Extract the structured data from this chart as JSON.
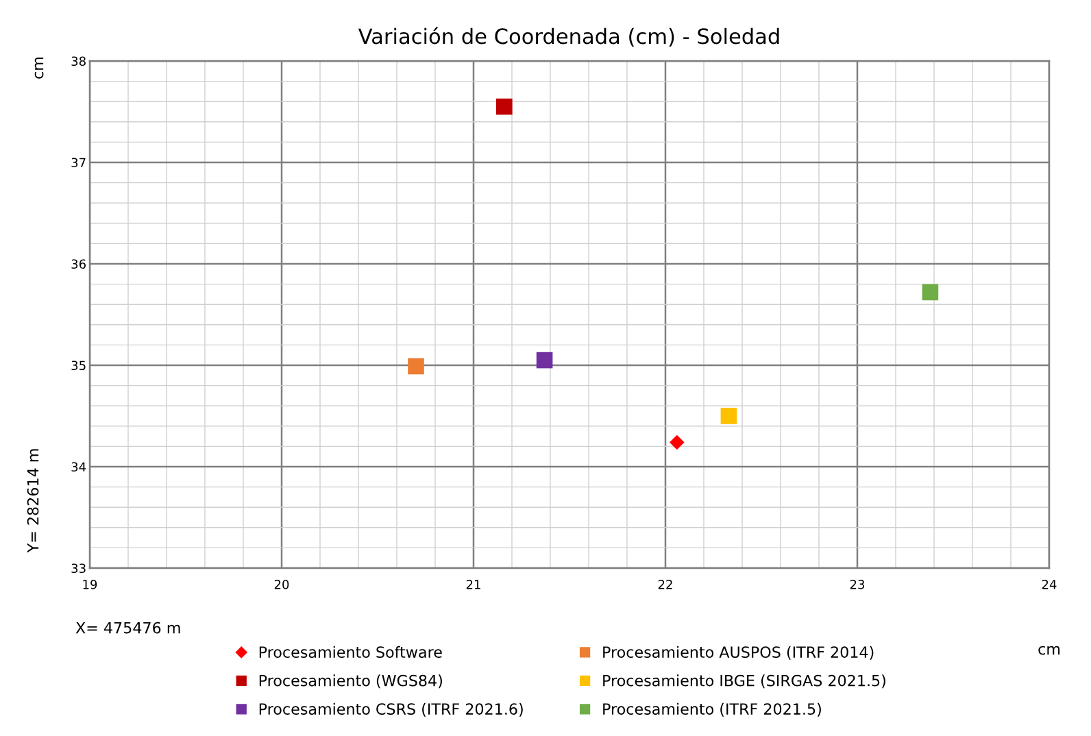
{
  "chart_data": {
    "type": "scatter",
    "title": "Variación de Coordenada (cm) - Soledad",
    "xlabel": "X= 475476 m",
    "ylabel": "Y= 282614 m",
    "annotations": [
      "cm",
      "cm"
    ],
    "series": [
      {
        "name": "Procesamiento Software",
        "color": "#ff0000",
        "marker": "diamond",
        "x": [
          22.06
        ],
        "values": [
          34.24
        ]
      },
      {
        "name": "Procesamiento AUSPOS (ITRF 2014)",
        "color": "#ed7d31",
        "marker": "square",
        "x": [
          20.7
        ],
        "values": [
          34.99
        ]
      },
      {
        "name": "Procesamiento (WGS84)",
        "color": "#c00000",
        "marker": "square",
        "x": [
          21.16
        ],
        "values": [
          37.55
        ]
      },
      {
        "name": "Procesamiento IBGE (SIRGAS 2021.5)",
        "color": "#ffc000",
        "marker": "square",
        "x": [
          22.33
        ],
        "values": [
          34.5
        ]
      },
      {
        "name": "Procesamiento CSRS (ITRF 2021.6)",
        "color": "#7030a0",
        "marker": "square",
        "x": [
          21.37
        ],
        "values": [
          35.05
        ]
      },
      {
        "name": "Procesamiento (ITRF 2021.5)",
        "color": "#70ad47",
        "marker": "square",
        "x": [
          23.38
        ],
        "values": [
          35.72
        ]
      }
    ],
    "xlim": [
      19,
      24
    ],
    "xticks": [
      19,
      20,
      21,
      22,
      23,
      24
    ],
    "ylim": [
      33,
      38
    ],
    "yticks": [
      33,
      34,
      35,
      36,
      37,
      38
    ],
    "grid": true,
    "legend": "bottom"
  }
}
